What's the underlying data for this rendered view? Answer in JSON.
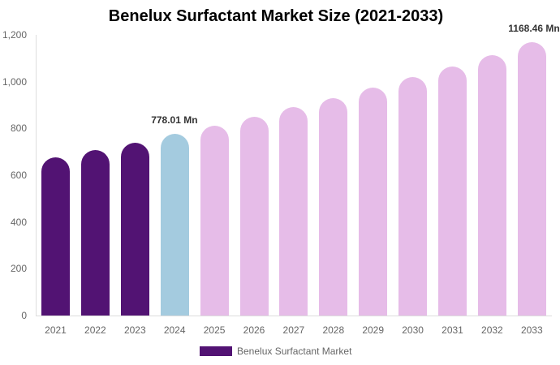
{
  "chart_data": {
    "type": "bar",
    "title": "Benelux Surfactant Market Size (2021-2033)",
    "xlabel": "",
    "ylabel": "",
    "ylim": [
      0,
      1200
    ],
    "yticks": [
      "0",
      "200",
      "400",
      "600",
      "800",
      "1,000",
      "1,200"
    ],
    "categories": [
      "2021",
      "2022",
      "2023",
      "2024",
      "2025",
      "2026",
      "2027",
      "2028",
      "2029",
      "2030",
      "2031",
      "2032",
      "2033"
    ],
    "series": [
      {
        "name": "Benelux Surfactant Market",
        "values": [
          676,
          707,
          739,
          778.01,
          812,
          850,
          891,
          929,
          974,
          1019,
          1064,
          1113,
          1168.46
        ]
      }
    ],
    "bar_colors": [
      "#521373",
      "#521373",
      "#521373",
      "#a4cbdf",
      "#e6bce8",
      "#e6bce8",
      "#e6bce8",
      "#e6bce8",
      "#e6bce8",
      "#e6bce8",
      "#e6bce8",
      "#e6bce8",
      "#e6bce8"
    ],
    "annotations": [
      {
        "category": "2024",
        "text": "778.01 Mn"
      },
      {
        "category": "2033",
        "text": "1168.46 Mn"
      }
    ],
    "grid": false,
    "legend_position": "bottom",
    "legend_color": "#521373"
  }
}
